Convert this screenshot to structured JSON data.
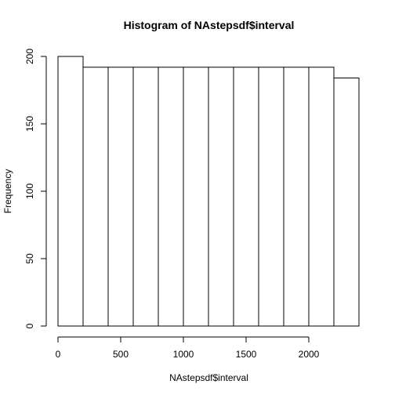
{
  "chart_data": {
    "type": "bar",
    "title": "Histogram of NAstepsdf$interval",
    "xlabel": "NAstepsdf$interval",
    "ylabel": "Frequency",
    "bins": [
      {
        "start": 0,
        "end": 200,
        "value": 200
      },
      {
        "start": 200,
        "end": 400,
        "value": 192
      },
      {
        "start": 400,
        "end": 600,
        "value": 192
      },
      {
        "start": 600,
        "end": 800,
        "value": 192
      },
      {
        "start": 800,
        "end": 1000,
        "value": 192
      },
      {
        "start": 1000,
        "end": 1200,
        "value": 192
      },
      {
        "start": 1200,
        "end": 1400,
        "value": 192
      },
      {
        "start": 1400,
        "end": 1600,
        "value": 192
      },
      {
        "start": 1600,
        "end": 1800,
        "value": 192
      },
      {
        "start": 1800,
        "end": 2000,
        "value": 192
      },
      {
        "start": 2000,
        "end": 2200,
        "value": 192
      },
      {
        "start": 2200,
        "end": 2400,
        "value": 184
      }
    ],
    "xlim": [
      0,
      2400
    ],
    "ylim": [
      0,
      200
    ],
    "x_ticks": [
      "0",
      "500",
      "1000",
      "1500",
      "2000"
    ],
    "y_ticks": [
      "0",
      "50",
      "100",
      "150",
      "200"
    ],
    "grid": false,
    "colors": {
      "bar_fill": "#ffffff",
      "bar_stroke": "#000000"
    }
  }
}
